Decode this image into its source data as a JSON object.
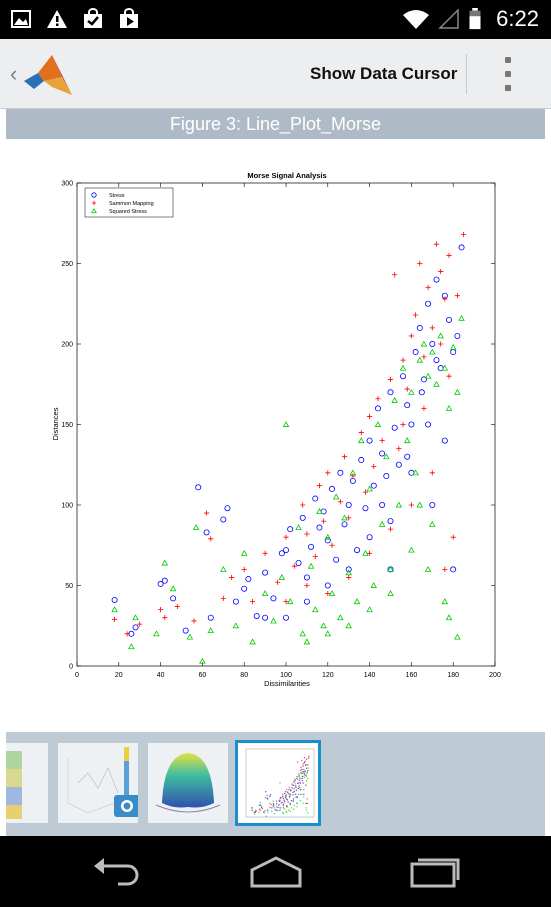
{
  "status_bar": {
    "time": "6:22",
    "icons": [
      "image-icon",
      "warning-icon",
      "shopping-bag-check-icon",
      "play-store-icon",
      "wifi-icon",
      "signal-icon",
      "battery-icon"
    ]
  },
  "action_bar": {
    "show_data_cursor_label": "Show Data Cursor",
    "icons": [
      "back-chevron-icon",
      "matlab-logo-icon",
      "overflow-menu-icon"
    ]
  },
  "figure": {
    "title": "Figure 3: Line_Plot_Morse"
  },
  "colors": {
    "status_bar_bg": "#000000",
    "action_bar_bg": "#eceeef",
    "figure_bar_bg": "#aebbc6",
    "thumb_strip_bg": "#bfcbd4",
    "selected_thumb_border": "#1a8fd0",
    "series_stress": "#0000ff",
    "series_sammon": "#ff0000",
    "series_squared": "#00cc00"
  },
  "chart_data": {
    "type": "scatter",
    "title": "Morse Signal Analysis",
    "xlabel": "Dissimilarities",
    "ylabel": "Distances",
    "xlim": [
      0,
      200
    ],
    "ylim": [
      0,
      300
    ],
    "xticks": [
      0,
      20,
      40,
      60,
      80,
      100,
      120,
      140,
      160,
      180,
      200
    ],
    "yticks": [
      0,
      50,
      100,
      150,
      200,
      250,
      300
    ],
    "grid": false,
    "legend_position": "top-left",
    "series": [
      {
        "name": "Stress",
        "marker": "circle",
        "color": "#0000ff",
        "points": [
          [
            18,
            41
          ],
          [
            26,
            20
          ],
          [
            28,
            24
          ],
          [
            40,
            51
          ],
          [
            42,
            53
          ],
          [
            46,
            42
          ],
          [
            52,
            22
          ],
          [
            58,
            111
          ],
          [
            62,
            83
          ],
          [
            64,
            30
          ],
          [
            70,
            91
          ],
          [
            72,
            98
          ],
          [
            76,
            40
          ],
          [
            80,
            48
          ],
          [
            82,
            54
          ],
          [
            86,
            31
          ],
          [
            90,
            58
          ],
          [
            94,
            42
          ],
          [
            98,
            70
          ],
          [
            100,
            72
          ],
          [
            102,
            85
          ],
          [
            106,
            64
          ],
          [
            108,
            92
          ],
          [
            110,
            55
          ],
          [
            112,
            74
          ],
          [
            114,
            104
          ],
          [
            116,
            86
          ],
          [
            118,
            96
          ],
          [
            120,
            78
          ],
          [
            122,
            110
          ],
          [
            124,
            66
          ],
          [
            126,
            120
          ],
          [
            128,
            88
          ],
          [
            130,
            100
          ],
          [
            132,
            115
          ],
          [
            134,
            72
          ],
          [
            136,
            128
          ],
          [
            138,
            98
          ],
          [
            140,
            140
          ],
          [
            142,
            112
          ],
          [
            144,
            160
          ],
          [
            146,
            132
          ],
          [
            148,
            118
          ],
          [
            150,
            170
          ],
          [
            152,
            148
          ],
          [
            154,
            125
          ],
          [
            156,
            180
          ],
          [
            158,
            162
          ],
          [
            160,
            150
          ],
          [
            162,
            195
          ],
          [
            164,
            210
          ],
          [
            166,
            178
          ],
          [
            168,
            225
          ],
          [
            170,
            200
          ],
          [
            172,
            240
          ],
          [
            174,
            185
          ],
          [
            176,
            230
          ],
          [
            178,
            215
          ],
          [
            180,
            195
          ],
          [
            182,
            205
          ],
          [
            184,
            260
          ],
          [
            176,
            140
          ],
          [
            160,
            120
          ],
          [
            150,
            90
          ],
          [
            140,
            80
          ],
          [
            130,
            60
          ],
          [
            120,
            50
          ],
          [
            170,
            100
          ],
          [
            180,
            60
          ],
          [
            110,
            40
          ],
          [
            100,
            30
          ],
          [
            90,
            30
          ],
          [
            150,
            60
          ],
          [
            165,
            170
          ],
          [
            172,
            190
          ],
          [
            168,
            150
          ],
          [
            158,
            130
          ],
          [
            146,
            100
          ]
        ]
      },
      {
        "name": "Sammon Mapping",
        "marker": "plus",
        "color": "#ff0000",
        "points": [
          [
            18,
            29
          ],
          [
            24,
            20
          ],
          [
            30,
            26
          ],
          [
            40,
            35
          ],
          [
            42,
            30
          ],
          [
            48,
            37
          ],
          [
            56,
            28
          ],
          [
            62,
            95
          ],
          [
            64,
            79
          ],
          [
            70,
            42
          ],
          [
            74,
            55
          ],
          [
            80,
            60
          ],
          [
            84,
            40
          ],
          [
            90,
            70
          ],
          [
            96,
            52
          ],
          [
            100,
            80
          ],
          [
            104,
            62
          ],
          [
            108,
            100
          ],
          [
            110,
            82
          ],
          [
            114,
            68
          ],
          [
            116,
            112
          ],
          [
            118,
            90
          ],
          [
            120,
            120
          ],
          [
            122,
            75
          ],
          [
            126,
            102
          ],
          [
            128,
            130
          ],
          [
            130,
            92
          ],
          [
            132,
            118
          ],
          [
            136,
            145
          ],
          [
            138,
            108
          ],
          [
            140,
            155
          ],
          [
            142,
            124
          ],
          [
            144,
            166
          ],
          [
            146,
            140
          ],
          [
            150,
            178
          ],
          [
            152,
            243
          ],
          [
            154,
            135
          ],
          [
            156,
            190
          ],
          [
            158,
            172
          ],
          [
            160,
            205
          ],
          [
            162,
            218
          ],
          [
            164,
            250
          ],
          [
            166,
            192
          ],
          [
            168,
            235
          ],
          [
            170,
            210
          ],
          [
            172,
            262
          ],
          [
            174,
            245
          ],
          [
            176,
            228
          ],
          [
            178,
            255
          ],
          [
            182,
            230
          ],
          [
            185,
            268
          ],
          [
            178,
            180
          ],
          [
            170,
            120
          ],
          [
            160,
            100
          ],
          [
            150,
            85
          ],
          [
            140,
            70
          ],
          [
            130,
            55
          ],
          [
            120,
            45
          ],
          [
            180,
            80
          ],
          [
            176,
            60
          ],
          [
            110,
            50
          ],
          [
            100,
            40
          ],
          [
            166,
            160
          ],
          [
            174,
            200
          ],
          [
            156,
            150
          ]
        ]
      },
      {
        "name": "Squared Stress",
        "marker": "triangle",
        "color": "#00cc00",
        "points": [
          [
            18,
            35
          ],
          [
            26,
            12
          ],
          [
            28,
            30
          ],
          [
            38,
            20
          ],
          [
            42,
            64
          ],
          [
            46,
            48
          ],
          [
            54,
            18
          ],
          [
            57,
            86
          ],
          [
            60,
            3
          ],
          [
            64,
            22
          ],
          [
            70,
            60
          ],
          [
            76,
            25
          ],
          [
            80,
            70
          ],
          [
            84,
            15
          ],
          [
            90,
            45
          ],
          [
            94,
            28
          ],
          [
            98,
            55
          ],
          [
            100,
            150
          ],
          [
            102,
            40
          ],
          [
            106,
            86
          ],
          [
            108,
            20
          ],
          [
            112,
            62
          ],
          [
            114,
            35
          ],
          [
            116,
            96
          ],
          [
            118,
            25
          ],
          [
            120,
            80
          ],
          [
            122,
            45
          ],
          [
            124,
            105
          ],
          [
            126,
            30
          ],
          [
            128,
            92
          ],
          [
            130,
            58
          ],
          [
            132,
            120
          ],
          [
            134,
            40
          ],
          [
            136,
            140
          ],
          [
            138,
            70
          ],
          [
            140,
            110
          ],
          [
            142,
            50
          ],
          [
            144,
            150
          ],
          [
            146,
            88
          ],
          [
            148,
            130
          ],
          [
            150,
            60
          ],
          [
            152,
            165
          ],
          [
            154,
            100
          ],
          [
            156,
            185
          ],
          [
            158,
            140
          ],
          [
            160,
            170
          ],
          [
            162,
            120
          ],
          [
            164,
            190
          ],
          [
            166,
            200
          ],
          [
            168,
            180
          ],
          [
            170,
            195
          ],
          [
            172,
            175
          ],
          [
            174,
            205
          ],
          [
            176,
            185
          ],
          [
            178,
            160
          ],
          [
            180,
            198
          ],
          [
            182,
            170
          ],
          [
            184,
            216
          ],
          [
            178,
            30
          ],
          [
            182,
            18
          ],
          [
            176,
            40
          ],
          [
            168,
            60
          ],
          [
            160,
            72
          ],
          [
            150,
            45
          ],
          [
            140,
            35
          ],
          [
            130,
            25
          ],
          [
            120,
            20
          ],
          [
            110,
            15
          ],
          [
            170,
            88
          ],
          [
            164,
            100
          ]
        ]
      }
    ]
  },
  "thumbnails": [
    {
      "name": "thumb-heatmap-figure"
    },
    {
      "name": "thumb-3d-line-figure"
    },
    {
      "name": "thumb-surface-figure"
    },
    {
      "name": "thumb-scatter-figure",
      "selected": true
    }
  ]
}
